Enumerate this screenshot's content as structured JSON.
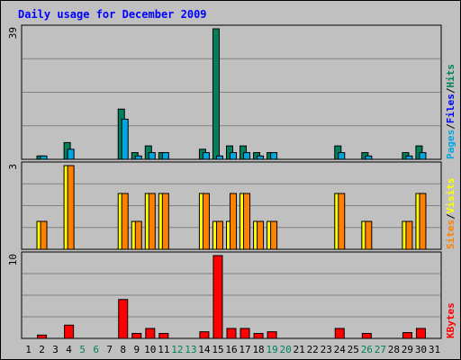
{
  "chart_data": {
    "type": "bar",
    "title": "Daily usage for December 2009",
    "categories": [
      "1",
      "2",
      "3",
      "4",
      "5",
      "6",
      "7",
      "8",
      "9",
      "10",
      "11",
      "12",
      "13",
      "14",
      "15",
      "16",
      "17",
      "18",
      "19",
      "20",
      "21",
      "22",
      "23",
      "24",
      "25",
      "26",
      "27",
      "28",
      "29",
      "30",
      "31"
    ],
    "weekend_days": [
      "5",
      "6",
      "12",
      "13",
      "19",
      "20",
      "26",
      "27"
    ],
    "panels": [
      {
        "id": "hits-files-pages",
        "ymax": 39,
        "ymax_label": "39",
        "legend": [
          "Pages",
          "/",
          "Files",
          "/",
          "Hits"
        ],
        "series": [
          {
            "name": "Hits",
            "color": "#00805c",
            "values": [
              0,
              1,
              0,
              5,
              0,
              0,
              0,
              15,
              2,
              4,
              2,
              0,
              0,
              3,
              39,
              4,
              4,
              2,
              2,
              0,
              0,
              0,
              0,
              4,
              0,
              2,
              0,
              0,
              2,
              4,
              0
            ]
          },
          {
            "name": "Files",
            "color": "#00a6e0",
            "values": [
              0,
              1,
              0,
              3,
              0,
              0,
              0,
              12,
              1,
              2,
              2,
              0,
              0,
              2,
              1,
              2,
              2,
              1,
              2,
              0,
              0,
              0,
              0,
              2,
              0,
              1,
              0,
              0,
              1,
              2,
              0
            ]
          },
          {
            "name": "Pages",
            "color": "#00a6e0",
            "values": [
              0,
              0,
              0,
              0,
              0,
              0,
              0,
              0,
              0,
              0,
              0,
              0,
              0,
              0,
              0,
              0,
              0,
              0,
              0,
              0,
              0,
              0,
              0,
              0,
              0,
              0,
              0,
              0,
              0,
              0,
              0
            ]
          }
        ]
      },
      {
        "id": "visits-sites",
        "ymax": 3,
        "ymax_label": "3",
        "legend": [
          "Sites",
          "/",
          "Visits"
        ],
        "series": [
          {
            "name": "Visits",
            "color": "#ffff00",
            "values": [
              0,
              1,
              0,
              3,
              0,
              0,
              0,
              2,
              1,
              2,
              2,
              0,
              0,
              2,
              1,
              1,
              2,
              1,
              1,
              0,
              0,
              0,
              0,
              2,
              0,
              1,
              0,
              0,
              1,
              2,
              0
            ]
          },
          {
            "name": "Sites",
            "color": "#ff8000",
            "values": [
              0,
              1,
              0,
              3,
              0,
              0,
              0,
              2,
              1,
              2,
              2,
              0,
              0,
              2,
              1,
              2,
              2,
              1,
              1,
              0,
              0,
              0,
              0,
              2,
              0,
              1,
              0,
              0,
              1,
              2,
              0
            ]
          }
        ]
      },
      {
        "id": "kbytes",
        "ymax": 10,
        "ymax_label": "10",
        "legend": [
          "KBytes"
        ],
        "series": [
          {
            "name": "KBytes",
            "color": "#ff0000",
            "values": [
              0,
              0.4,
              0,
              1.6,
              0,
              0,
              0,
              4.7,
              0.6,
              1.2,
              0.6,
              0,
              0,
              0.8,
              10,
              1.2,
              1.2,
              0.6,
              0.8,
              0,
              0,
              0,
              0,
              1.2,
              0,
              0.6,
              0,
              0,
              0.7,
              1.2,
              0
            ]
          }
        ]
      }
    ],
    "colors": {
      "title": "#0000ff",
      "weekday_label": "#000000",
      "weekend_label": "#00805c",
      "pages": "#00a6e0",
      "files": "#0000ff",
      "hits": "#00805c",
      "sites": "#ff8000",
      "visits": "#ffff00",
      "kbytes": "#ff0000",
      "plot_bg": "#c0c0c0",
      "grid": "#808080"
    }
  }
}
